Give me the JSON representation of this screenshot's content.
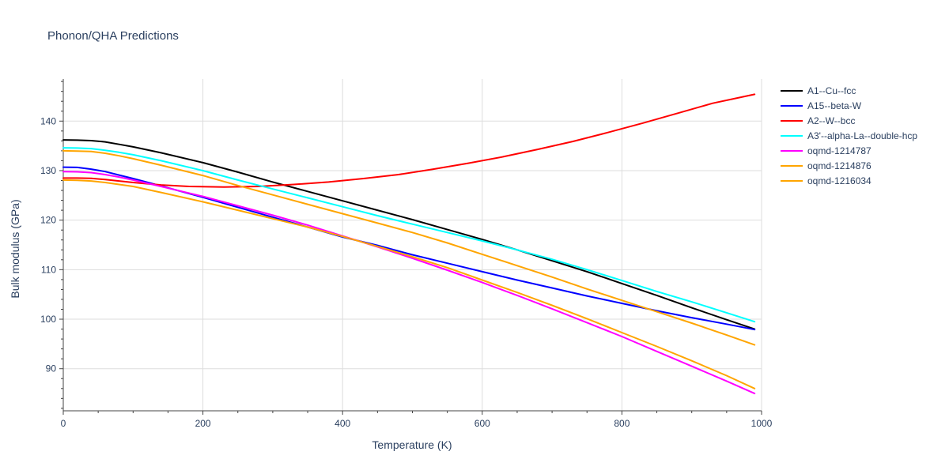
{
  "chart_data": {
    "type": "line",
    "title": "Phonon/QHA Predictions",
    "xlabel": "Temperature (K)",
    "ylabel": "Bulk modulus (GPa)",
    "xlim": [
      0,
      1000
    ],
    "ylim": [
      81.5,
      148.5
    ],
    "xticks": [
      0,
      200,
      400,
      600,
      800,
      1000
    ],
    "yticks": [
      90,
      100,
      110,
      120,
      130,
      140
    ],
    "grid": true,
    "legend_position": "right",
    "series": [
      {
        "name": "A1--Cu--fcc",
        "color": "#000000",
        "x": [
          0,
          20,
          40,
          60,
          80,
          100,
          140,
          200,
          250,
          300,
          350,
          400,
          450,
          500,
          550,
          600,
          650,
          700,
          750,
          800,
          850,
          900,
          950,
          990
        ],
        "y": [
          136.2,
          136.15,
          136.05,
          135.8,
          135.3,
          134.8,
          133.6,
          131.6,
          129.7,
          127.7,
          125.8,
          123.9,
          122.0,
          120.1,
          118.1,
          116.1,
          114.0,
          111.8,
          109.6,
          107.2,
          104.8,
          102.3,
          99.9,
          98.0
        ]
      },
      {
        "name": "A15--beta-W",
        "color": "#0000ff",
        "x": [
          0,
          20,
          40,
          60,
          80,
          100,
          140,
          200,
          250,
          300,
          350,
          400,
          450,
          500,
          550,
          600,
          650,
          700,
          750,
          800,
          850,
          900,
          950,
          990
        ],
        "y": [
          130.7,
          130.65,
          130.3,
          129.8,
          129.1,
          128.4,
          126.9,
          124.6,
          122.6,
          120.6,
          118.6,
          116.6,
          114.9,
          113.0,
          111.3,
          109.6,
          107.9,
          106.3,
          104.7,
          103.2,
          101.7,
          100.3,
          99.0,
          97.9
        ]
      },
      {
        "name": "A2--W--bcc",
        "color": "#ff0000",
        "x": [
          0,
          20,
          40,
          60,
          80,
          100,
          140,
          180,
          230,
          280,
          330,
          380,
          430,
          480,
          530,
          580,
          630,
          680,
          730,
          780,
          830,
          880,
          930,
          990
        ],
        "y": [
          128.5,
          128.5,
          128.45,
          128.2,
          127.9,
          127.6,
          127.1,
          126.8,
          126.7,
          126.8,
          127.2,
          127.7,
          128.4,
          129.2,
          130.3,
          131.5,
          132.8,
          134.3,
          135.9,
          137.7,
          139.6,
          141.6,
          143.6,
          145.4
        ]
      },
      {
        "name": "A3'--alpha-La--double-hcp",
        "color": "#00ffff",
        "x": [
          0,
          20,
          40,
          60,
          80,
          100,
          140,
          200,
          250,
          300,
          350,
          400,
          450,
          500,
          550,
          600,
          650,
          700,
          750,
          800,
          850,
          900,
          950,
          990
        ],
        "y": [
          134.6,
          134.55,
          134.45,
          134.1,
          133.7,
          133.2,
          132.0,
          130.0,
          128.1,
          126.3,
          124.5,
          122.7,
          120.9,
          119.2,
          117.5,
          115.8,
          114.0,
          112.1,
          110.0,
          107.8,
          105.6,
          103.5,
          101.3,
          99.5
        ]
      },
      {
        "name": "oqmd-1214787",
        "color": "#ff00ff",
        "x": [
          0,
          20,
          40,
          60,
          80,
          100,
          140,
          200,
          250,
          300,
          350,
          400,
          450,
          500,
          550,
          600,
          650,
          700,
          750,
          800,
          850,
          900,
          950,
          990
        ],
        "y": [
          129.8,
          129.75,
          129.6,
          129.2,
          128.7,
          128.1,
          126.8,
          124.8,
          122.9,
          121.0,
          119.0,
          116.8,
          114.6,
          112.3,
          109.9,
          107.4,
          104.8,
          102.1,
          99.3,
          96.5,
          93.5,
          90.5,
          87.5,
          85.0
        ]
      },
      {
        "name": "oqmd-1214876",
        "color": "#ffa500",
        "x": [
          0,
          20,
          40,
          60,
          80,
          100,
          140,
          200,
          250,
          300,
          350,
          400,
          450,
          500,
          550,
          600,
          650,
          700,
          750,
          800,
          850,
          900,
          950,
          990
        ],
        "y": [
          128.1,
          128.05,
          127.9,
          127.6,
          127.2,
          126.8,
          125.6,
          123.7,
          122.0,
          120.3,
          118.6,
          116.7,
          114.7,
          112.6,
          110.4,
          107.9,
          105.4,
          102.8,
          100.1,
          97.3,
          94.5,
          91.6,
          88.6,
          86.0
        ]
      },
      {
        "name": "oqmd-1216034",
        "color": "#ffa500",
        "x": [
          0,
          20,
          40,
          60,
          80,
          100,
          140,
          200,
          250,
          300,
          350,
          400,
          450,
          500,
          550,
          600,
          650,
          700,
          750,
          800,
          850,
          900,
          950,
          990
        ],
        "y": [
          134.0,
          133.95,
          133.85,
          133.5,
          133.0,
          132.4,
          131.1,
          129.0,
          127.0,
          125.1,
          123.2,
          121.3,
          119.4,
          117.5,
          115.4,
          113.1,
          110.8,
          108.5,
          106.1,
          103.8,
          101.5,
          99.2,
          96.8,
          94.8
        ]
      }
    ]
  }
}
